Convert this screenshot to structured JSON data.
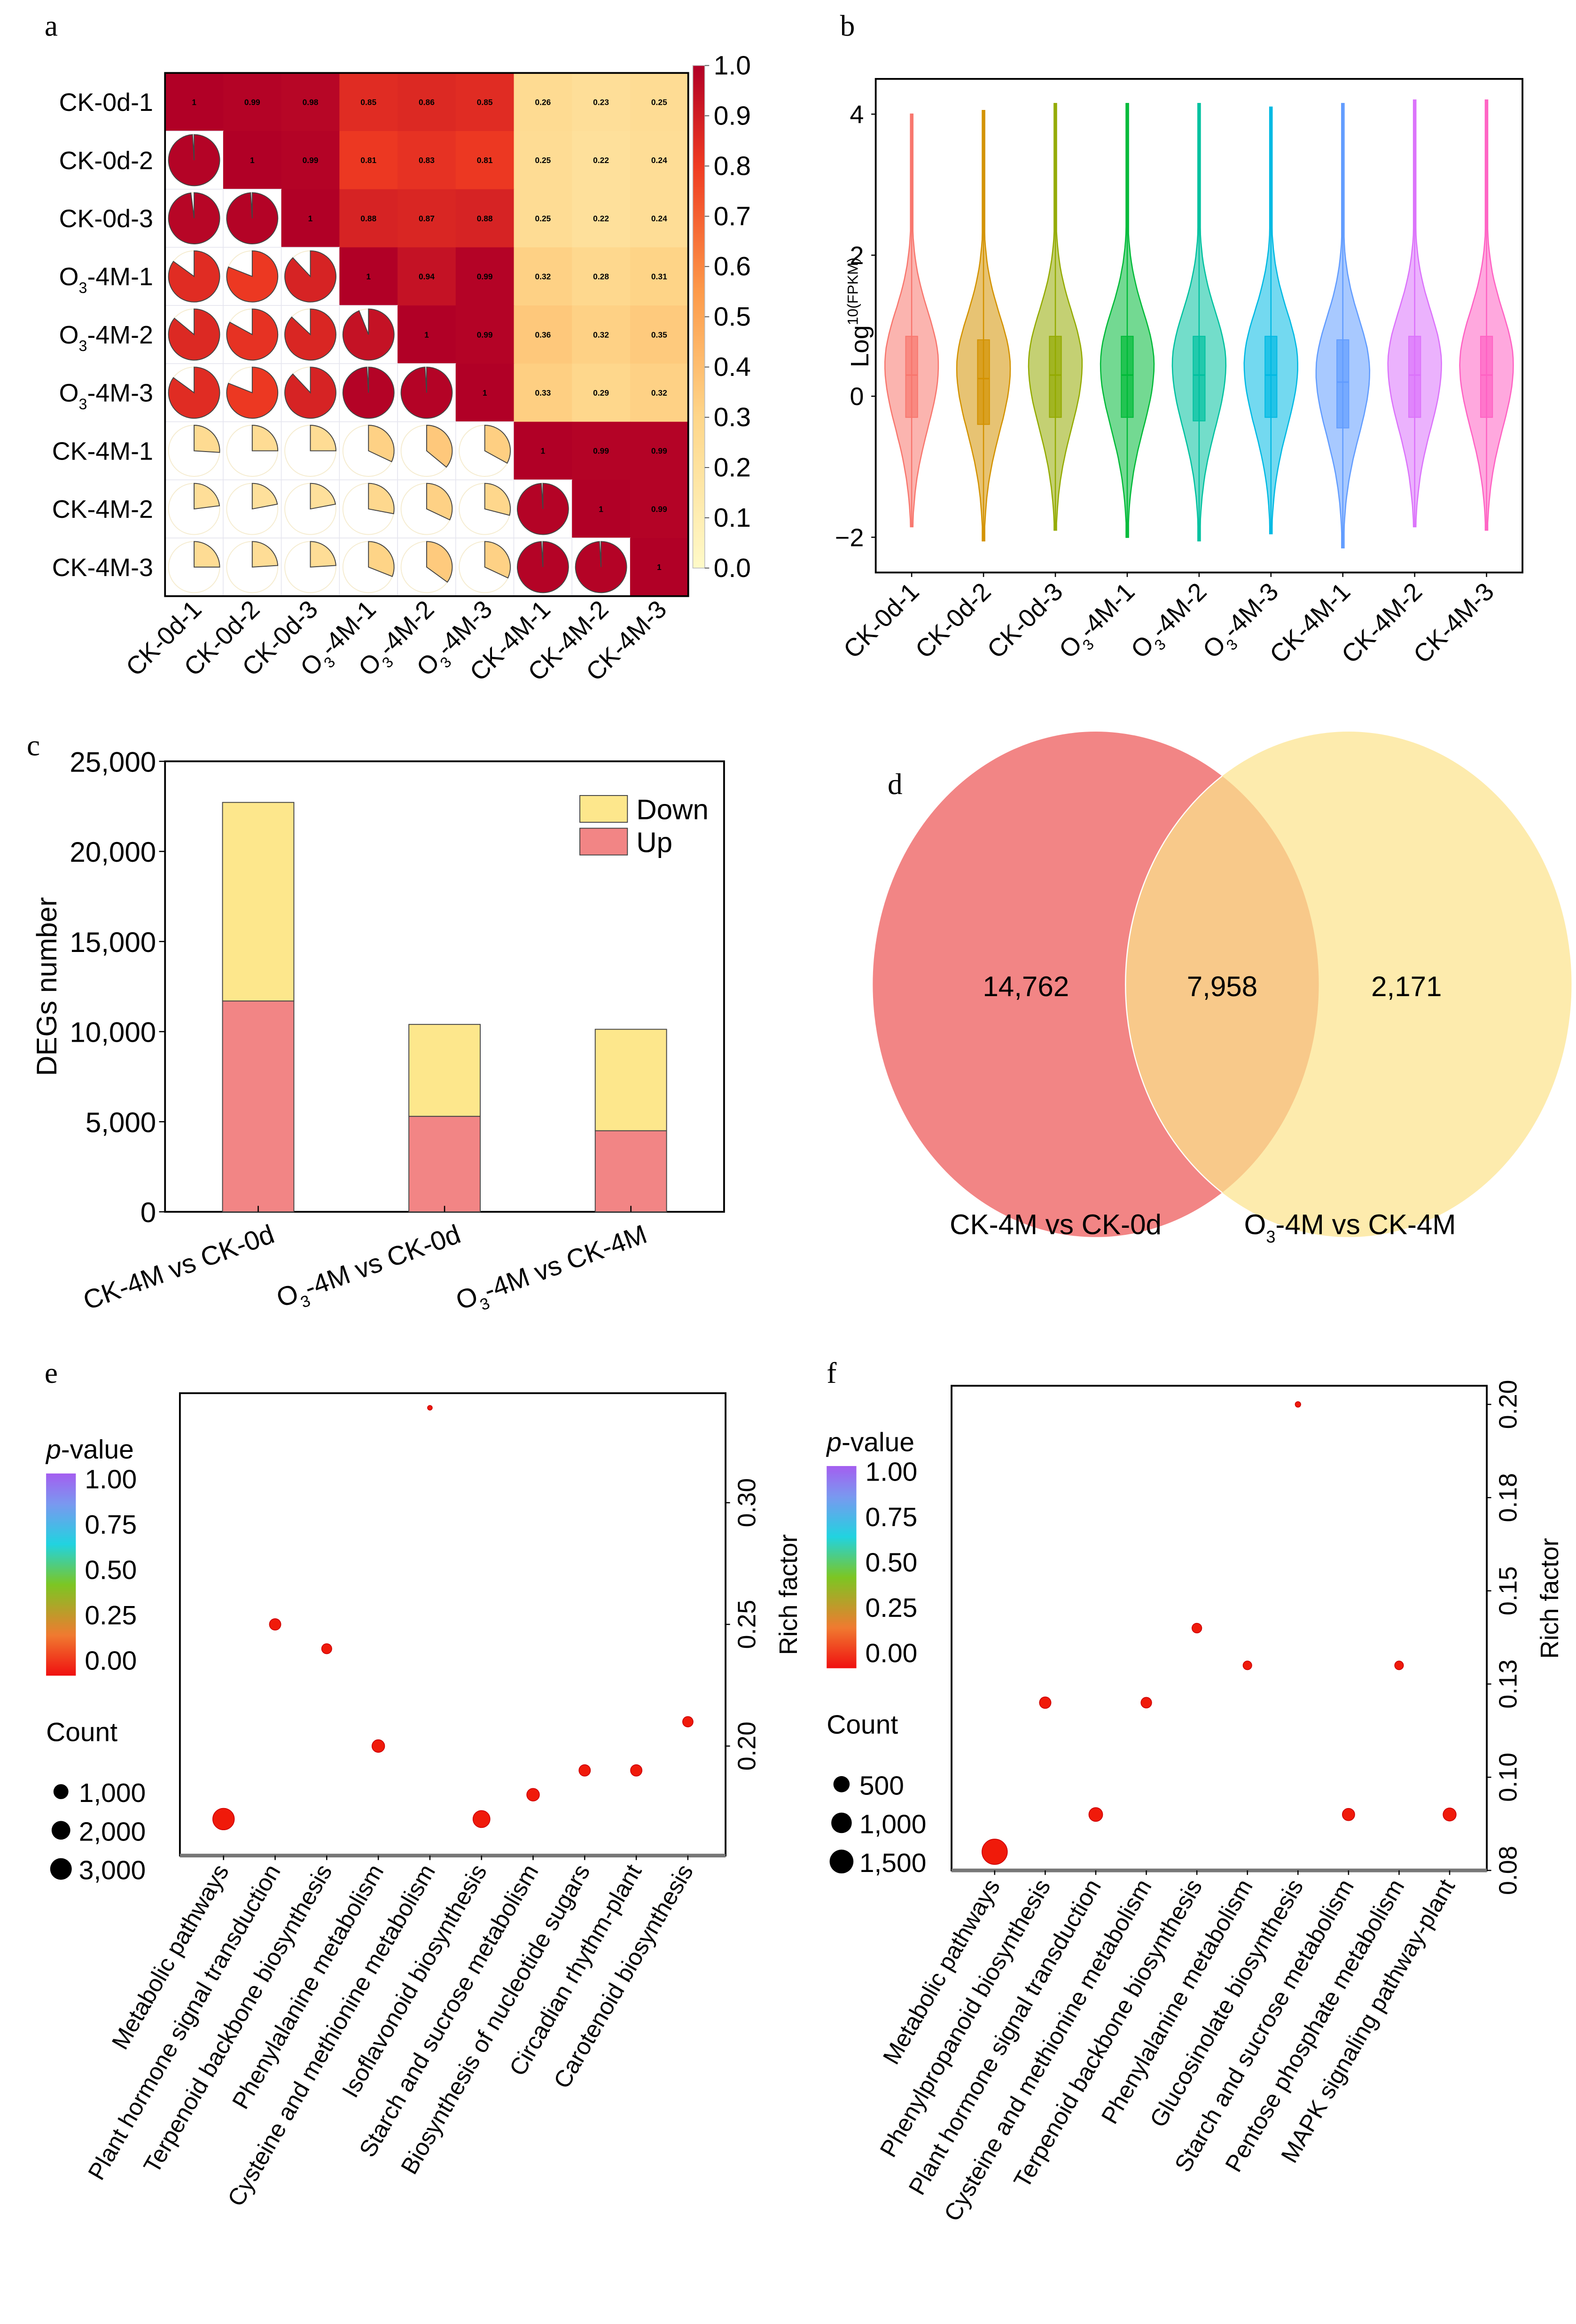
{
  "chart_data": [
    {
      "panel": "a",
      "type": "heatmap",
      "title": "",
      "samples": [
        "CK-0d-1",
        "CK-0d-2",
        "CK-0d-3",
        "O3-4M-1",
        "O3-4M-2",
        "O3-4M-3",
        "CK-4M-1",
        "CK-4M-2",
        "CK-4M-3"
      ],
      "sample_display": [
        {
          "main": "CK-0d-1",
          "sub": ""
        },
        {
          "main": "CK-0d-2",
          "sub": ""
        },
        {
          "main": "CK-0d-3",
          "sub": ""
        },
        {
          "pre": "O",
          "sub": "3",
          "post": "-4M-1"
        },
        {
          "pre": "O",
          "sub": "3",
          "post": "-4M-2"
        },
        {
          "pre": "O",
          "sub": "3",
          "post": "-4M-3"
        },
        {
          "main": "CK-4M-1",
          "sub": ""
        },
        {
          "main": "CK-4M-2",
          "sub": ""
        },
        {
          "main": "CK-4M-3",
          "sub": ""
        }
      ],
      "matrix": [
        [
          1,
          0.99,
          0.98,
          0.85,
          0.86,
          0.85,
          0.26,
          0.23,
          0.25
        ],
        [
          0.99,
          1,
          0.99,
          0.81,
          0.83,
          0.81,
          0.25,
          0.22,
          0.24
        ],
        [
          0.98,
          0.99,
          1,
          0.88,
          0.87,
          0.88,
          0.25,
          0.22,
          0.24
        ],
        [
          0.85,
          0.81,
          0.88,
          1,
          0.94,
          0.99,
          0.32,
          0.28,
          0.31
        ],
        [
          0.86,
          0.83,
          0.87,
          0.94,
          1,
          0.99,
          0.36,
          0.32,
          0.35
        ],
        [
          0.85,
          0.81,
          0.88,
          0.99,
          0.99,
          1,
          0.33,
          0.29,
          0.32
        ],
        [
          0.26,
          0.25,
          0.25,
          0.32,
          0.36,
          0.33,
          1,
          0.99,
          0.99
        ],
        [
          0.23,
          0.22,
          0.22,
          0.28,
          0.32,
          0.29,
          0.99,
          1,
          0.99
        ],
        [
          0.25,
          0.24,
          0.24,
          0.31,
          0.35,
          0.32,
          0.99,
          0.99,
          1
        ]
      ],
      "upper_style": "tile-with-value",
      "lower_style": "pie",
      "colorbar": {
        "ticks": [
          "1.0",
          "0.9",
          "0.8",
          "0.7",
          "0.6",
          "0.5",
          "0.4",
          "0.3",
          "0.2",
          "0.1",
          "0.0"
        ],
        "range": [
          0,
          1
        ]
      },
      "colors": {
        "low": "#fff5bf",
        "mid": "#fdb863",
        "high": "#f0502a",
        "top": "#b30c27"
      }
    },
    {
      "panel": "b",
      "type": "violin",
      "ylabel_main": "Log",
      "ylabel_sup": "10(FPKM)",
      "ylim": [
        -2.5,
        4.5
      ],
      "yticks": [
        -2,
        0,
        2,
        4
      ],
      "ytick_labels": [
        "−2",
        "0",
        "2",
        "4"
      ],
      "categories": [
        "CK-0d-1",
        "CK-0d-2",
        "CK-0d-3",
        "O3-4M-1",
        "O3-4M-2",
        "O3-4M-3",
        "CK-4M-1",
        "CK-4M-2",
        "CK-4M-3"
      ],
      "series": [
        {
          "name": "CK-0d-1",
          "color": "#f8766d",
          "min": -1.85,
          "q1": -0.3,
          "median": 0.3,
          "q3": 0.85,
          "max": 4.0
        },
        {
          "name": "CK-0d-2",
          "color": "#d39200",
          "min": -2.05,
          "q1": -0.4,
          "median": 0.25,
          "q3": 0.8,
          "max": 4.05
        },
        {
          "name": "CK-0d-3",
          "color": "#93aa00",
          "min": -1.9,
          "q1": -0.3,
          "median": 0.3,
          "q3": 0.85,
          "max": 4.15
        },
        {
          "name": "O3-4M-1",
          "color": "#00ba38",
          "min": -2.0,
          "q1": -0.3,
          "median": 0.3,
          "q3": 0.85,
          "max": 4.15
        },
        {
          "name": "O3-4M-2",
          "color": "#00c19f",
          "min": -2.05,
          "q1": -0.35,
          "median": 0.3,
          "q3": 0.85,
          "max": 4.15
        },
        {
          "name": "O3-4M-3",
          "color": "#00b9e3",
          "min": -1.95,
          "q1": -0.3,
          "median": 0.3,
          "q3": 0.85,
          "max": 4.1
        },
        {
          "name": "CK-4M-1",
          "color": "#619cff",
          "min": -2.15,
          "q1": -0.45,
          "median": 0.2,
          "q3": 0.8,
          "max": 4.15
        },
        {
          "name": "CK-4M-2",
          "color": "#db72fb",
          "min": -1.85,
          "q1": -0.3,
          "median": 0.3,
          "q3": 0.85,
          "max": 4.2
        },
        {
          "name": "CK-4M-3",
          "color": "#ff61c3",
          "min": -1.9,
          "q1": -0.3,
          "median": 0.3,
          "q3": 0.85,
          "max": 4.2
        }
      ]
    },
    {
      "panel": "c",
      "type": "bar",
      "stacked": true,
      "ylabel": "DEGs number",
      "xlabel": "",
      "ylim": [
        0,
        25000
      ],
      "yticks": [
        0,
        5000,
        10000,
        15000,
        20000,
        25000
      ],
      "ytick_labels": [
        "0",
        "5,000",
        "10,000",
        "15,000",
        "20,000",
        "25,000"
      ],
      "categories": [
        {
          "pre": "CK-4M vs CK-0d",
          "sub": "",
          "post": ""
        },
        {
          "pre": "O",
          "sub": "3",
          "post": "-4M vs CK-0d"
        },
        {
          "pre": "O",
          "sub": "3",
          "post": "-4M vs CK-4M"
        }
      ],
      "series": [
        {
          "name": "Up",
          "color": "#f28585",
          "values": [
            11700,
            5300,
            4500
          ]
        },
        {
          "name": "Down",
          "color": "#fde78c",
          "values": [
            11020,
            5100,
            5629
          ]
        }
      ],
      "legend": {
        "position": "top-right",
        "entries": [
          "Down",
          "Up"
        ]
      }
    },
    {
      "panel": "d",
      "type": "venn",
      "sets": [
        {
          "label_pre": "CK-4M vs CK-0d",
          "label_sub": "",
          "label_post": "",
          "color": "#f28585",
          "unique": "14,762"
        },
        {
          "label_pre": "O",
          "label_sub": "3",
          "label_post": "-4M vs CK-4M",
          "color": "#fde9a6",
          "unique": "2,171"
        }
      ],
      "intersection": "7,958",
      "intersection_color": "#f8c98a"
    },
    {
      "panel": "e",
      "type": "scatter",
      "ylabel": "Rich factor",
      "ylim": [
        0.155,
        0.345
      ],
      "yticks": [
        0.2,
        0.25,
        0.3
      ],
      "ytick_labels": [
        "0.20",
        "0.25",
        "0.30"
      ],
      "categories": [
        "Metabolic pathways",
        "Plant hormone signal transduction",
        "Terpenoid backbone biosynthesis",
        "Phenylalanine metabolism",
        "Cysteine and methionine metabolism",
        "Isoflavonoid biosynthesis",
        "Starch and sucrose metabolism",
        "Biosynthesis of nucleotide sugars",
        "Circadian rhythm-plant",
        "Carotenoid biosynthesis"
      ],
      "rich_factor": [
        0.17,
        0.25,
        0.24,
        0.2,
        0.339,
        0.17,
        0.18,
        0.19,
        0.19,
        0.21
      ],
      "count": [
        3200,
        900,
        700,
        1100,
        150,
        2000,
        1100,
        900,
        900,
        750
      ],
      "p_value": [
        0,
        0,
        0,
        0,
        0,
        0,
        0,
        0,
        0,
        0
      ],
      "pvalue_legend": {
        "title_italic": "p",
        "title_rest": "-value",
        "ticks": [
          "1.00",
          "0.75",
          "0.50",
          "0.25",
          "0.00"
        ]
      },
      "count_legend": {
        "title": "Count",
        "values": [
          1000,
          2000,
          3000
        ],
        "labels": [
          "1,000",
          "2,000",
          "3,000"
        ]
      }
    },
    {
      "panel": "f",
      "type": "scatter",
      "ylabel": "Rich factor",
      "ylim": [
        0.075,
        0.205
      ],
      "yticks": [
        0.075,
        0.1,
        0.125,
        0.15,
        0.175,
        0.2
      ],
      "ytick_labels": [
        "0.08",
        "0.10",
        "0.13",
        "0.15",
        "0.18",
        "0.20"
      ],
      "categories": [
        "Metabolic pathways",
        "Phenylpropanoid biosynthesis",
        "Plant hormone signal transduction",
        "Cysteine and methionine metabolism",
        "Terpenoid backbone biosynthesis",
        "Phenylalanine metabolism",
        "Glucosinolate biosynthesis",
        "Starch and sucrose metabolism",
        "Pentose phosphate metabolism",
        "MAPK signaling pathway-plant"
      ],
      "rich_factor": [
        0.08,
        0.12,
        0.09,
        0.12,
        0.14,
        0.13,
        0.2,
        0.09,
        0.13,
        0.09
      ],
      "count": [
        1700,
        350,
        500,
        300,
        250,
        200,
        80,
        400,
        200,
        450
      ],
      "p_value": [
        0,
        0,
        0,
        0,
        0,
        0,
        0,
        0,
        0,
        0
      ],
      "pvalue_legend": {
        "title_italic": "p",
        "title_rest": "-value",
        "ticks": [
          "1.00",
          "0.75",
          "0.50",
          "0.25",
          "0.00"
        ]
      },
      "count_legend": {
        "title": "Count",
        "values": [
          500,
          1000,
          1500
        ],
        "labels": [
          "500",
          "1,000",
          "1,500"
        ]
      }
    }
  ],
  "panel_labels": {
    "a": "a",
    "b": "b",
    "c": "c",
    "d": "d",
    "e": "e",
    "f": "f"
  }
}
